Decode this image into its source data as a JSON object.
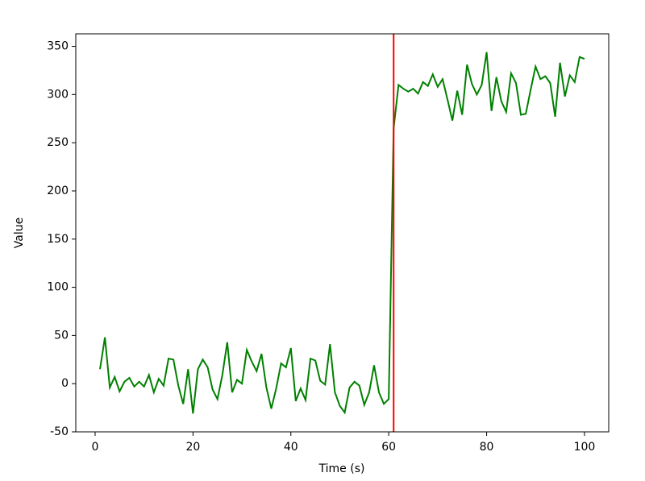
{
  "chart_data": {
    "type": "line",
    "x_label": "Time (s)",
    "y_label": "Value",
    "x": [
      1,
      2,
      3,
      4,
      5,
      6,
      7,
      8,
      9,
      10,
      11,
      12,
      13,
      14,
      15,
      16,
      17,
      18,
      19,
      20,
      21,
      22,
      23,
      24,
      25,
      26,
      27,
      28,
      29,
      30,
      31,
      32,
      33,
      34,
      35,
      36,
      37,
      38,
      39,
      40,
      41,
      42,
      43,
      44,
      45,
      46,
      47,
      48,
      49,
      50,
      51,
      52,
      53,
      54,
      55,
      56,
      57,
      58,
      59,
      60,
      61,
      62,
      63,
      64,
      65,
      66,
      67,
      68,
      69,
      70,
      71,
      72,
      73,
      74,
      75,
      76,
      77,
      78,
      79,
      80,
      81,
      82,
      83,
      84,
      85,
      86,
      87,
      88,
      89,
      90,
      91,
      92,
      93,
      94,
      95,
      96,
      97,
      98,
      99,
      100
    ],
    "series": [
      {
        "color": "#008000",
        "values": [
          15,
          48,
          -4,
          7,
          -8,
          2,
          6,
          -3,
          2,
          -3,
          9,
          -9,
          5,
          -2,
          26,
          25,
          -2,
          -21,
          15,
          -31,
          15,
          25,
          17,
          -6,
          -16,
          9,
          43,
          -9,
          4,
          0,
          35,
          23,
          13,
          31,
          -4,
          -26,
          -5,
          21,
          17,
          37,
          -18,
          -5,
          -17,
          26,
          24,
          3,
          -1,
          41,
          -9,
          -23,
          -30,
          -4,
          2,
          -2,
          -22,
          -9,
          19,
          -9,
          -21,
          -16,
          265,
          310,
          306,
          303,
          306,
          301,
          313,
          309,
          321,
          308,
          316,
          295,
          273,
          304,
          279,
          331,
          311,
          300,
          310,
          344,
          283,
          318,
          293,
          282,
          322,
          312,
          279,
          280,
          305,
          329,
          316,
          319,
          312,
          277,
          333,
          298,
          320,
          313,
          339,
          337
        ]
      }
    ],
    "vline": {
      "x": 61,
      "color": "#ff0000"
    },
    "xlim": [
      -3.95,
      104.95
    ],
    "ylim": [
      -50,
      363
    ],
    "xticks": [
      0,
      20,
      40,
      60,
      80,
      100
    ],
    "yticks": [
      -50,
      0,
      50,
      100,
      150,
      200,
      250,
      300,
      350
    ]
  }
}
